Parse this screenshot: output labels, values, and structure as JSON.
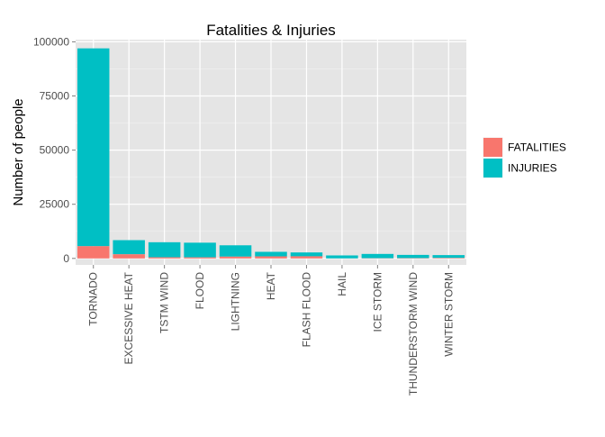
{
  "chart_data": {
    "type": "bar",
    "stacked": true,
    "title": "Fatalities & Injuries",
    "xlabel": "",
    "ylabel": "Number of people",
    "ylim": [
      -3000,
      101000
    ],
    "yticks": [
      0,
      25000,
      50000,
      75000,
      100000
    ],
    "ytick_labels": [
      "0",
      "25000",
      "50000",
      "75000",
      "100000"
    ],
    "categories": [
      "TORNADO",
      "EXCESSIVE HEAT",
      "TSTM WIND",
      "FLOOD",
      "LIGHTNING",
      "HEAT",
      "FLASH FLOOD",
      "HAIL",
      "ICE STORM",
      "THUNDERSTORM WIND",
      "WINTER STORM"
    ],
    "series": [
      {
        "name": "FATALITIES",
        "color": "#F8766D",
        "values": [
          5633,
          1903,
          504,
          470,
          816,
          937,
          978,
          15,
          89,
          133,
          206
        ]
      },
      {
        "name": "INJURIES",
        "color": "#00BFC4",
        "values": [
          91346,
          6525,
          6957,
          6789,
          5230,
          2100,
          1777,
          1361,
          1975,
          1488,
          1321
        ]
      }
    ],
    "legend_position": "right",
    "grid": true
  }
}
